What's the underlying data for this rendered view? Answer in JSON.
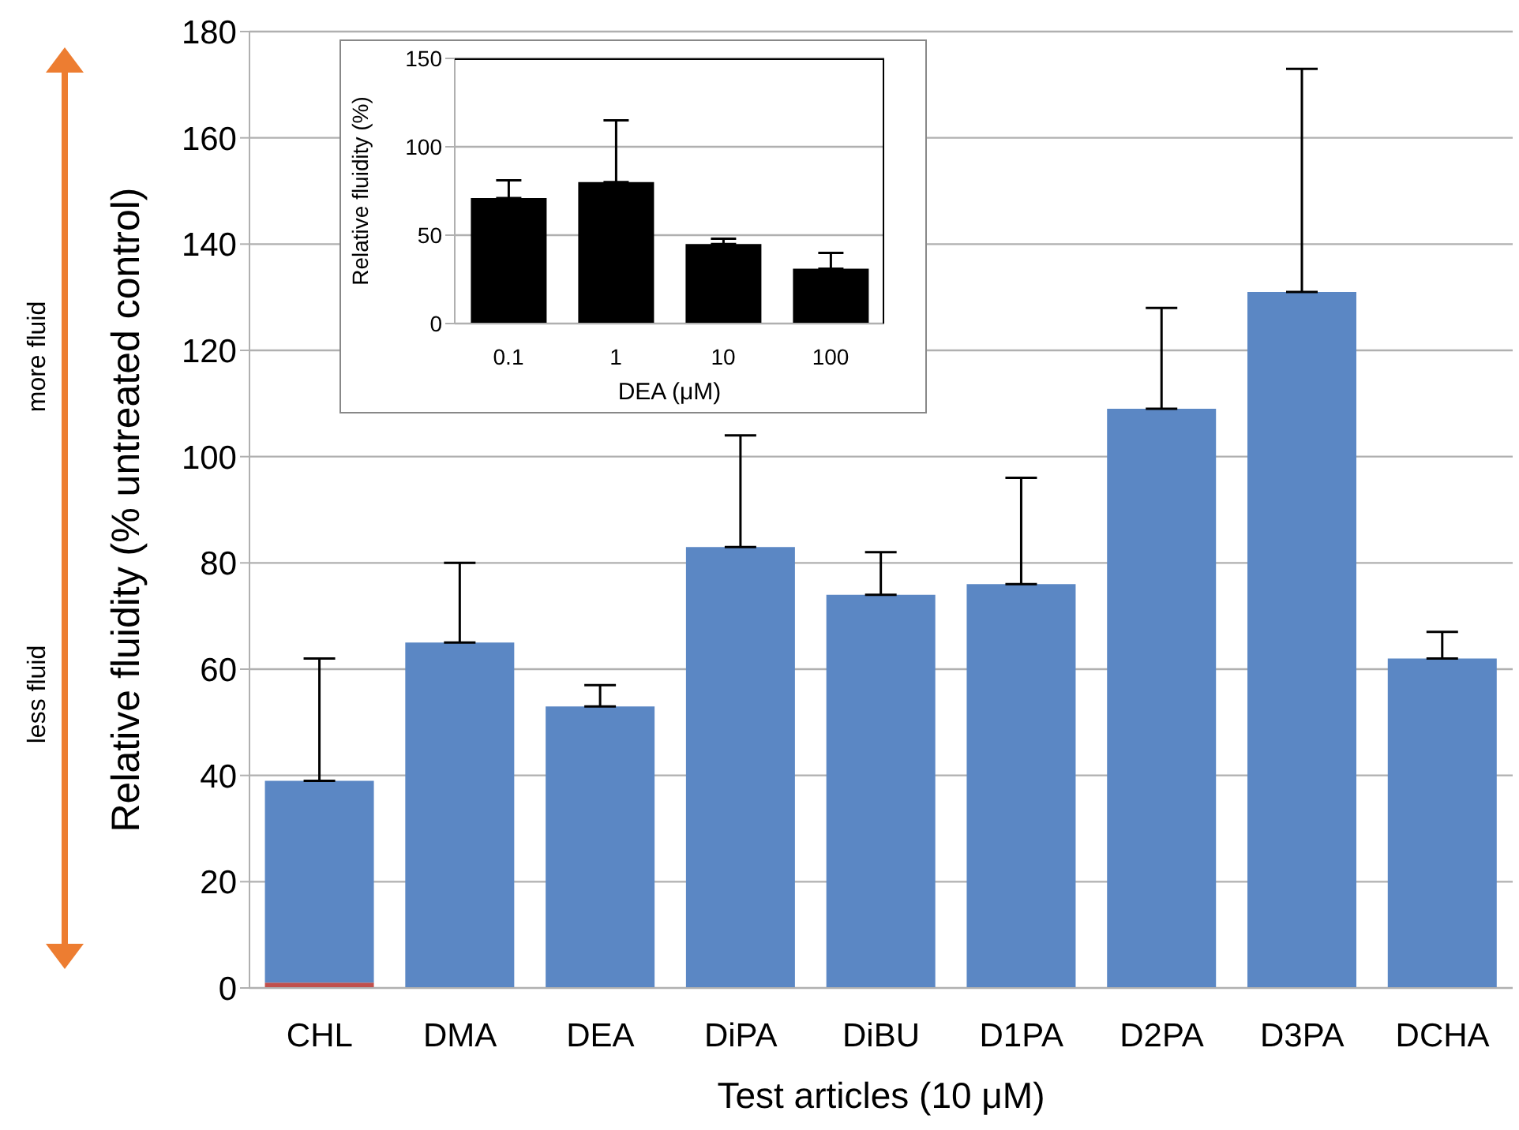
{
  "chart_data": [
    {
      "type": "bar",
      "ylabel": "Relative fluidity (% untreated control)",
      "xlabel": "Test articles (10 μM)",
      "categories": [
        "CHL",
        "DMA",
        "DEA",
        "DiPA",
        "DiBU",
        "D1PA",
        "D2PA",
        "D3PA",
        "DCHA"
      ],
      "stacked": true,
      "series": [
        {
          "color": "#c0504d",
          "values": [
            1,
            null,
            null,
            null,
            null,
            null,
            null,
            null,
            null
          ]
        },
        {
          "color": "#5b87c4",
          "values": [
            38,
            65,
            53,
            83,
            74,
            76,
            109,
            131,
            62
          ],
          "errors": [
            [
              39,
              62
            ],
            [
              65,
              80
            ],
            [
              53,
              57
            ],
            [
              83,
              104
            ],
            [
              74,
              82
            ],
            [
              76,
              96
            ],
            [
              109,
              128
            ],
            [
              131,
              173
            ],
            [
              62,
              67
            ]
          ]
        }
      ],
      "ylim": [
        0,
        180
      ],
      "yticks": [
        0,
        20,
        40,
        60,
        80,
        100,
        120,
        140,
        160,
        180
      ],
      "grid": "y",
      "annotations": [
        "more fluid",
        "less fluid"
      ]
    },
    {
      "type": "bar",
      "ylabel": "Relative fluidity (%)",
      "xlabel": "DEA (μM)",
      "categories": [
        "0.1",
        "1",
        "10",
        "100"
      ],
      "series": [
        {
          "color": "#000000",
          "values": [
            71,
            80,
            45,
            31
          ],
          "errors": [
            [
              71,
              81
            ],
            [
              80,
              115
            ],
            [
              45,
              48
            ],
            [
              31,
              40
            ]
          ]
        }
      ],
      "ylim": [
        0,
        150
      ],
      "yticks": [
        0,
        50,
        100,
        150
      ],
      "grid": "y"
    }
  ]
}
